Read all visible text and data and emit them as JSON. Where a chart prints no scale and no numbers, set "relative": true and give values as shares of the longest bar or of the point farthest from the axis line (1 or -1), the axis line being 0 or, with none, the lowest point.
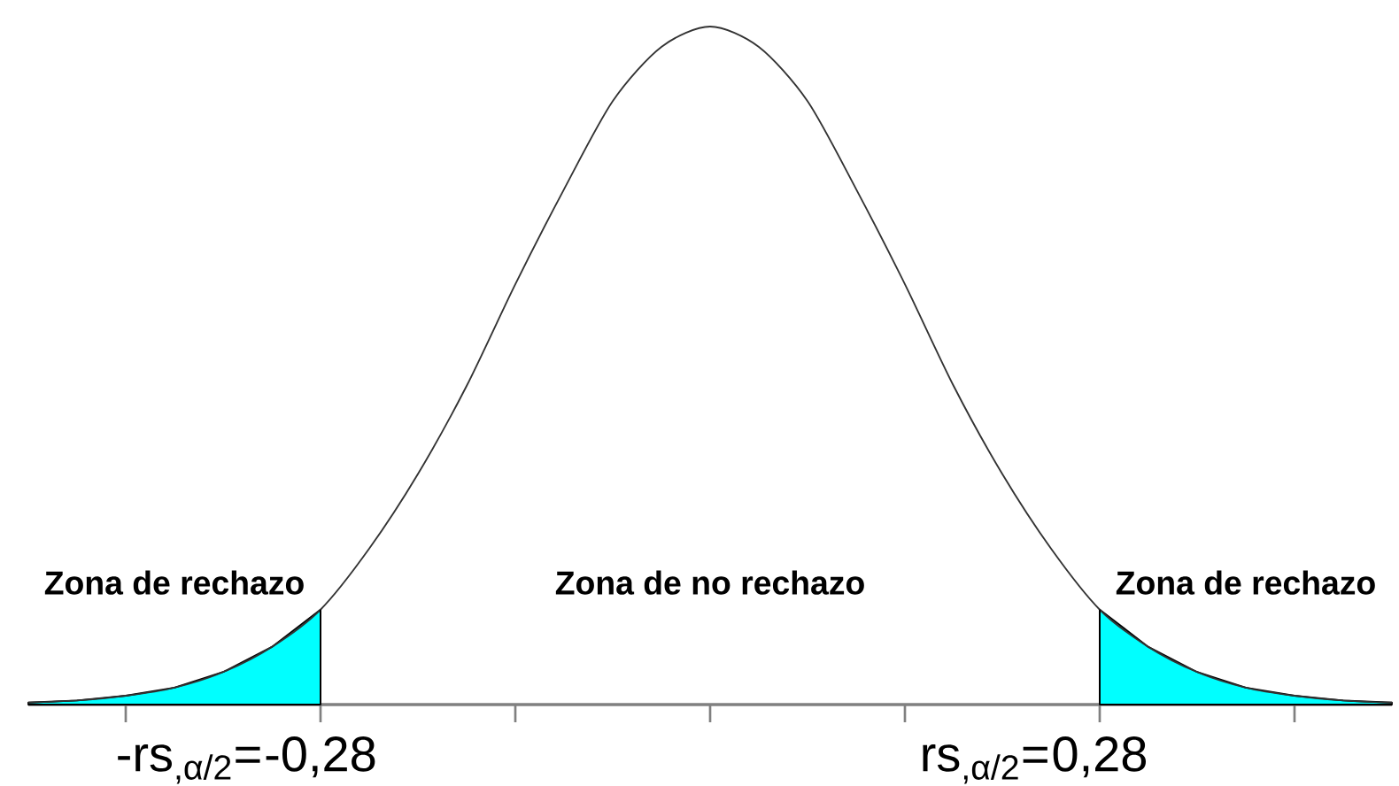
{
  "chart_data": {
    "type": "line",
    "relative": true,
    "x": [
      -0.49,
      -0.455,
      -0.42,
      -0.385,
      -0.35,
      -0.315,
      -0.28,
      -0.245,
      -0.21,
      -0.175,
      -0.14,
      -0.105,
      -0.07,
      -0.035,
      0,
      0.035,
      0.07,
      0.105,
      0.14,
      0.175,
      0.21,
      0.245,
      0.28,
      0.315,
      0.35,
      0.385,
      0.42,
      0.455,
      0.49
    ],
    "xlim": [
      -0.49,
      0.49
    ],
    "xticks": [
      {
        "value": -0.42,
        "label": null
      },
      {
        "value": -0.28,
        "label": "-0,28"
      },
      {
        "value": -0.14,
        "label": null
      },
      {
        "value": 0,
        "label": null
      },
      {
        "value": 0.14,
        "label": null
      },
      {
        "value": 0.28,
        "label": "0,28"
      },
      {
        "value": 0.42,
        "label": null
      }
    ],
    "ref_lines": [
      {
        "axis": "x",
        "value": -0.28,
        "label": "-rs$_{,α/2}$=",
        "color": "#000000"
      },
      {
        "axis": "x",
        "value": 0.28,
        "label": "rs$_{,α/2}$=",
        "color": "#000000"
      }
    ],
    "series": [
      {
        "color": "#333333",
        "values": [
          0.003,
          0.006,
          0.013,
          0.025,
          0.048,
          0.085,
          0.14,
          0.23,
          0.34,
          0.47,
          0.62,
          0.76,
          0.89,
          0.97,
          1,
          0.97,
          0.89,
          0.76,
          0.62,
          0.47,
          0.34,
          0.23,
          0.14,
          0.085,
          0.048,
          0.025,
          0.013,
          0.006,
          0.003
        ]
      },
      {
        "type": "area",
        "color": "#00ffff",
        "x": [
          -0.49,
          -0.455,
          -0.42,
          -0.385,
          -0.35,
          -0.315,
          -0.28
        ],
        "values": [
          0.003,
          0.006,
          0.013,
          0.025,
          0.048,
          0.085,
          0.14
        ]
      },
      {
        "type": "area",
        "color": "#00ffff",
        "x": [
          0.28,
          0.315,
          0.35,
          0.385,
          0.42,
          0.455,
          0.49
        ],
        "values": [
          0.14,
          0.085,
          0.048,
          0.025,
          0.013,
          0.006,
          0.003
        ]
      }
    ],
    "annotations": [
      "Zona de rechazo",
      "Zona de no rechazo",
      "Zona de  rechazo"
    ]
  }
}
